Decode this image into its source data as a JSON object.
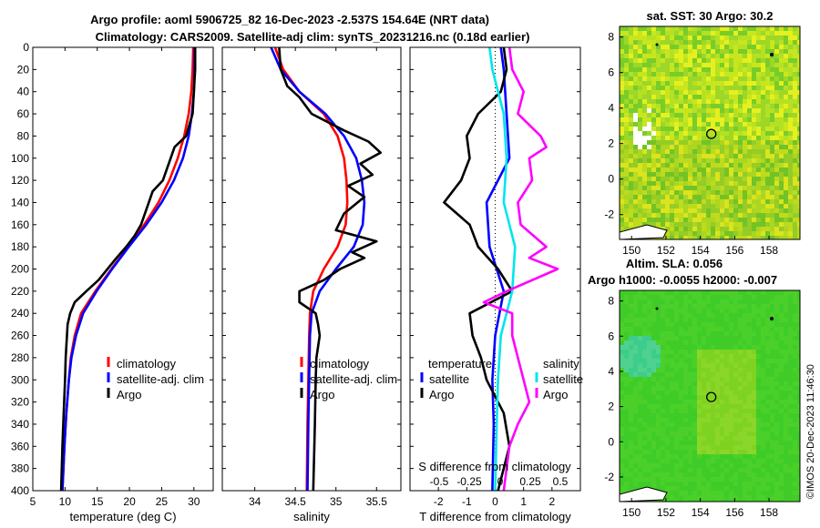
{
  "titles": {
    "line1": "Argo profile: aoml 5906725_82 16-Dec-2023 -2.537S 154.64E (NRT data)",
    "line2": "Climatology: CARS2009. Satellite-adj clim: synTS_20231216.nc (0.18d earlier)",
    "map1": "sat. SST: 30 Argo: 30.2",
    "map2a": "Altim. SLA: 0.056",
    "map2b": "Argo h1000: -0.0055 h2000: -0.007"
  },
  "stamp": "©IMOS 20-Dec-2023 11:46:30",
  "colors": {
    "climatology": "#ff0000",
    "satellite": "#0000ff",
    "argo": "#000000",
    "salinity_diff": "#ff00ff",
    "satellite_s": "#00e5ee"
  },
  "chart_data": [
    {
      "type": "line",
      "id": "temperature",
      "xlabel": "temperature (deg C)",
      "ylabel": "",
      "xlim": [
        5,
        33
      ],
      "ylim": [
        400,
        0
      ],
      "xticks": [
        5,
        10,
        15,
        20,
        25,
        30
      ],
      "yticks": [
        0,
        20,
        40,
        60,
        80,
        100,
        120,
        140,
        160,
        180,
        200,
        220,
        240,
        260,
        280,
        300,
        320,
        340,
        360,
        380,
        400
      ],
      "legend": [
        "climatology",
        "satellite-adj. clim",
        "Argo"
      ],
      "series": [
        {
          "name": "climatology",
          "color": "#ff0000",
          "depth": [
            0,
            20,
            40,
            60,
            80,
            100,
            120,
            140,
            160,
            180,
            200,
            220,
            240,
            260,
            280,
            300,
            330,
            360,
            400
          ],
          "values": [
            29.9,
            29.8,
            29.6,
            29.2,
            28.5,
            27.5,
            26.2,
            24.5,
            22.3,
            19.8,
            17.2,
            14.7,
            12.5,
            11.5,
            10.9,
            10.6,
            10.2,
            9.9,
            9.6
          ]
        },
        {
          "name": "satellite-adj. clim",
          "color": "#0000ff",
          "depth": [
            0,
            20,
            40,
            60,
            80,
            100,
            120,
            140,
            160,
            180,
            200,
            220,
            240,
            260,
            280,
            300,
            330,
            360,
            400
          ],
          "values": [
            30.1,
            30.1,
            30.0,
            29.7,
            29.2,
            28.3,
            26.9,
            25.0,
            22.6,
            19.9,
            17.3,
            14.9,
            12.8,
            11.7,
            11.0,
            10.6,
            10.2,
            9.9,
            9.6
          ]
        },
        {
          "name": "Argo",
          "color": "#000000",
          "depth": [
            0,
            20,
            40,
            60,
            80,
            90,
            100,
            120,
            130,
            140,
            160,
            170,
            180,
            190,
            200,
            210,
            220,
            230,
            240,
            250,
            260,
            280,
            300,
            330,
            360,
            400
          ],
          "values": [
            30.2,
            30.2,
            30.0,
            29.8,
            28.8,
            27.0,
            26.4,
            25.2,
            23.6,
            23.0,
            21.8,
            20.8,
            19.5,
            18.0,
            16.6,
            15.2,
            13.3,
            11.5,
            10.8,
            10.4,
            10.3,
            10.1,
            10.0,
            9.8,
            9.6,
            9.4
          ]
        }
      ]
    },
    {
      "type": "line",
      "id": "salinity",
      "xlabel": "salinity",
      "ylabel": "",
      "xlim": [
        33.6,
        35.8
      ],
      "ylim": [
        400,
        0
      ],
      "xticks": [
        34,
        34.5,
        35,
        35.5
      ],
      "legend": [
        "climatology",
        "satellite-adj. clim",
        "Argo"
      ],
      "series": [
        {
          "name": "climatology",
          "color": "#ff0000",
          "depth": [
            0,
            20,
            40,
            60,
            80,
            100,
            120,
            140,
            160,
            180,
            200,
            220,
            240,
            260,
            300,
            340,
            400
          ],
          "values": [
            34.25,
            34.35,
            34.55,
            34.85,
            35.02,
            35.1,
            35.13,
            35.14,
            35.12,
            35.02,
            34.85,
            34.72,
            34.68,
            34.67,
            34.66,
            34.65,
            34.64
          ]
        },
        {
          "name": "satellite-adj. clim",
          "color": "#0000ff",
          "depth": [
            0,
            20,
            40,
            60,
            80,
            100,
            120,
            140,
            160,
            180,
            200,
            220,
            240,
            260,
            300,
            340,
            400
          ],
          "values": [
            34.2,
            34.32,
            34.55,
            34.87,
            35.1,
            35.25,
            35.32,
            35.35,
            35.33,
            35.22,
            35.0,
            34.8,
            34.7,
            34.68,
            34.67,
            34.66,
            34.65
          ]
        },
        {
          "name": "Argo",
          "color": "#000000",
          "depth": [
            0,
            20,
            35,
            45,
            60,
            75,
            85,
            95,
            105,
            115,
            125,
            135,
            150,
            165,
            175,
            185,
            190,
            200,
            210,
            220,
            230,
            240,
            250,
            260,
            280,
            300,
            340,
            400
          ],
          "values": [
            34.3,
            34.32,
            34.4,
            34.55,
            34.7,
            35.1,
            35.4,
            35.55,
            35.3,
            35.45,
            35.15,
            35.35,
            35.1,
            35.0,
            35.5,
            35.2,
            35.35,
            35.05,
            34.85,
            34.55,
            34.55,
            34.75,
            34.78,
            34.8,
            34.76,
            34.75,
            34.74,
            34.72
          ]
        }
      ]
    },
    {
      "type": "line",
      "id": "differences",
      "xlabel": "T difference from climatology",
      "xlabel_top": "S difference from climatology",
      "xlim": [
        -3,
        3
      ],
      "ylim": [
        400,
        0
      ],
      "xticks": [
        -2,
        -1,
        0,
        1,
        2
      ],
      "xticks_top": [
        "-0.5",
        "-0.25",
        "0",
        "0.25",
        "0.5"
      ],
      "legend_left": {
        "title": "temperature",
        "items": [
          "satellite",
          "Argo"
        ]
      },
      "legend_right": {
        "title": "salinity",
        "items": [
          "satellite",
          "Argo"
        ]
      },
      "series": [
        {
          "name": "T satellite",
          "color": "#0000ff",
          "depth": [
            0,
            20,
            60,
            100,
            140,
            180,
            220,
            260,
            300,
            340,
            400
          ],
          "values": [
            0.2,
            0.3,
            0.4,
            0.5,
            -0.3,
            -0.2,
            0.3,
            0.0,
            -0.1,
            -0.05,
            -0.1
          ]
        },
        {
          "name": "T Argo",
          "color": "#000000",
          "depth": [
            0,
            20,
            40,
            60,
            80,
            100,
            120,
            140,
            160,
            180,
            200,
            220,
            240,
            260,
            280,
            300,
            330,
            360,
            400
          ],
          "values": [
            0.3,
            0.4,
            0.2,
            -0.6,
            -1.0,
            -0.9,
            -1.2,
            -1.8,
            -0.9,
            -0.6,
            0.1,
            0.6,
            -0.9,
            -0.8,
            -0.5,
            -0.3,
            0.3,
            0.5,
            0.1
          ]
        },
        {
          "name": "S satellite",
          "color": "#00e5ee",
          "depth": [
            0,
            20,
            60,
            100,
            140,
            180,
            220,
            260,
            300,
            340,
            400
          ],
          "values": [
            -0.2,
            -0.1,
            0.3,
            0.4,
            0.3,
            0.7,
            0.6,
            0.2,
            0.1,
            0.05,
            0.0
          ]
        },
        {
          "name": "S Argo",
          "color": "#ff00ff",
          "depth": [
            0,
            20,
            40,
            60,
            80,
            90,
            100,
            120,
            140,
            160,
            180,
            190,
            200,
            220,
            230,
            240,
            260,
            280,
            300,
            320,
            340,
            360,
            400
          ],
          "values": [
            0.5,
            0.6,
            1.0,
            0.8,
            1.6,
            1.8,
            1.2,
            1.3,
            0.8,
            0.9,
            1.8,
            1.2,
            2.2,
            0.4,
            -0.4,
            0.6,
            0.6,
            0.8,
            1.0,
            1.2,
            0.8,
            0.5,
            0.3
          ]
        }
      ]
    },
    {
      "type": "heatmap",
      "id": "sst-map",
      "title": "sat. SST: 30 Argo: 30.2",
      "xlim": [
        149.3,
        159.8
      ],
      "ylim": [
        -3.4,
        8.6
      ],
      "xticks": [
        150,
        152,
        154,
        156,
        158
      ],
      "yticks": [
        -2,
        0,
        2,
        4,
        6,
        8
      ],
      "marker": {
        "lon": 154.64,
        "lat": 2.54
      }
    },
    {
      "type": "heatmap",
      "id": "sla-map",
      "title": "Altim. SLA: 0.056",
      "xlim": [
        149.3,
        159.8
      ],
      "ylim": [
        -3.4,
        8.6
      ],
      "xticks": [
        150,
        152,
        154,
        156,
        158
      ],
      "yticks": [
        -2,
        0,
        2,
        4,
        6,
        8
      ],
      "marker": {
        "lon": 154.64,
        "lat": 2.54
      }
    }
  ]
}
